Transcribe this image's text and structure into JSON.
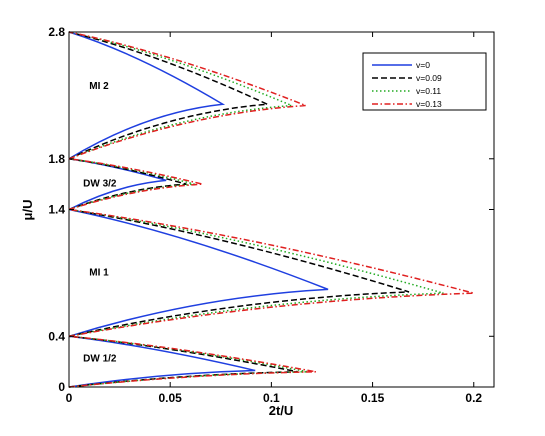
{
  "chart_data": {
    "type": "line",
    "title": "",
    "xlabel": "2t/U",
    "ylabel": "μ/U",
    "xlim": [
      0,
      0.21
    ],
    "ylim": [
      0,
      2.8
    ],
    "xticks": [
      0,
      0.05,
      0.1,
      0.15,
      0.2
    ],
    "xtick_labels": [
      "0",
      "0.05",
      "0.1",
      "0.15",
      "0.2"
    ],
    "yticks": [
      0,
      0.4,
      1.4,
      1.8,
      2.8
    ],
    "ytick_labels": [
      "0",
      "0.4",
      "1.4",
      "1.8",
      "2.8"
    ],
    "grid": false,
    "legend_position": "top-right",
    "region_labels": [
      {
        "text": "MI 2"
      },
      {
        "text": "DW 3/2"
      },
      {
        "text": "MI 1"
      },
      {
        "text": "DW 1/2"
      }
    ],
    "series": [
      {
        "name": "v=0",
        "color": "#1f3fe0",
        "dash": "solid",
        "lobes": [
          {
            "bottom": 0.0,
            "top": 0.4,
            "tip_x": 0.092,
            "tip_y": 0.13
          },
          {
            "bottom": 0.4,
            "top": 1.4,
            "tip_x": 0.128,
            "tip_y": 0.77
          },
          {
            "bottom": 1.4,
            "top": 1.8,
            "tip_x": 0.048,
            "tip_y": 1.63
          },
          {
            "bottom": 1.8,
            "top": 2.8,
            "tip_x": 0.076,
            "tip_y": 2.23
          }
        ]
      },
      {
        "name": "v=0.09",
        "color": "#000000",
        "dash": "dashed",
        "lobes": [
          {
            "bottom": 0.0,
            "top": 0.4,
            "tip_x": 0.113,
            "tip_y": 0.12
          },
          {
            "bottom": 0.4,
            "top": 1.4,
            "tip_x": 0.168,
            "tip_y": 0.75
          },
          {
            "bottom": 1.4,
            "top": 1.8,
            "tip_x": 0.058,
            "tip_y": 1.6
          },
          {
            "bottom": 1.8,
            "top": 2.8,
            "tip_x": 0.098,
            "tip_y": 2.23
          }
        ]
      },
      {
        "name": "v=0.11",
        "color": "#22aa22",
        "dash": "dotted",
        "lobes": [
          {
            "bottom": 0.0,
            "top": 0.4,
            "tip_x": 0.118,
            "tip_y": 0.12
          },
          {
            "bottom": 0.4,
            "top": 1.4,
            "tip_x": 0.185,
            "tip_y": 0.74
          },
          {
            "bottom": 1.4,
            "top": 1.8,
            "tip_x": 0.062,
            "tip_y": 1.6
          },
          {
            "bottom": 1.8,
            "top": 2.8,
            "tip_x": 0.11,
            "tip_y": 2.22
          }
        ]
      },
      {
        "name": "v=0.13",
        "color": "#e02020",
        "dash": "dashdot",
        "lobes": [
          {
            "bottom": 0.0,
            "top": 0.4,
            "tip_x": 0.122,
            "tip_y": 0.12
          },
          {
            "bottom": 0.4,
            "top": 1.4,
            "tip_x": 0.2,
            "tip_y": 0.74
          },
          {
            "bottom": 1.4,
            "top": 1.8,
            "tip_x": 0.066,
            "tip_y": 1.6
          },
          {
            "bottom": 1.8,
            "top": 2.8,
            "tip_x": 0.117,
            "tip_y": 2.22
          }
        ]
      }
    ]
  }
}
